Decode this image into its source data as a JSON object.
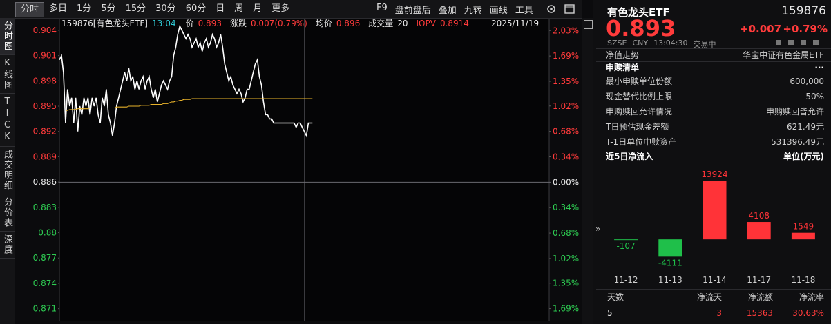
{
  "toolbar": {
    "tabs": [
      "分时",
      "多日",
      "1分",
      "5分",
      "15分",
      "30分",
      "60分",
      "日",
      "周",
      "月",
      "更多"
    ],
    "tools": [
      "F9",
      "盘前盘后",
      "叠加",
      "九转",
      "画线",
      "工具"
    ]
  },
  "sidebar": [
    "分时图",
    "K线图",
    "TICK",
    "成交明细",
    "分价表",
    "深度"
  ],
  "info_bar": {
    "name": "159876[有色龙头ETF]",
    "time": "13:04",
    "price": "0.893",
    "change_label": "涨跌",
    "change": "0.007(0.79%)",
    "avg_price": "0.896",
    "volume_label": "成交量",
    "volume": "20",
    "iopv_label": "IOPV",
    "iopv": "0.8914",
    "date": "2025/11/19"
  },
  "chart_data": [
    {
      "type": "line",
      "xlim": [
        0,
        240
      ],
      "ylim": [
        0.8695,
        0.9053
      ],
      "yticks": [
        0.904,
        0.901,
        0.898,
        0.895,
        0.892,
        0.889,
        0.886,
        0.883,
        0.88,
        0.877,
        0.874,
        0.871
      ],
      "y2lim": [
        -1.86,
        2.18
      ],
      "y2ticks": [
        {
          "value": 2.03,
          "label": "2.03%"
        },
        {
          "value": 1.69,
          "label": "1.69%"
        },
        {
          "value": 1.35,
          "label": "1.35%"
        },
        {
          "value": 1.02,
          "label": "1.02%"
        },
        {
          "value": 0.68,
          "label": "0.68%"
        },
        {
          "value": 0.34,
          "label": "0.34%"
        },
        {
          "value": 0,
          "label": "0.00%"
        },
        {
          "value": -0.34,
          "label": "0.34%"
        },
        {
          "value": -0.68,
          "label": "0.68%"
        },
        {
          "value": -1.02,
          "label": "1.02%"
        },
        {
          "value": -1.35,
          "label": "1.35%"
        },
        {
          "value": -1.69,
          "label": "1.69%"
        }
      ],
      "up_color": "#ff3b3b",
      "down_color": "#2ecc52",
      "series": [
        {
          "name": "价",
          "color": "#ffffff",
          "values": [
            0.9005,
            0.901,
            0.899,
            0.893,
            0.897,
            0.895,
            0.896,
            0.893,
            0.896,
            0.892,
            0.895,
            0.894,
            0.896,
            0.895,
            0.896,
            0.894,
            0.896,
            0.895,
            0.896,
            0.894,
            0.893,
            0.896,
            0.895,
            0.897,
            0.894,
            0.893,
            0.8915,
            0.893,
            0.895,
            0.896,
            0.897,
            0.898,
            0.899,
            0.898,
            0.8995,
            0.898,
            0.8985,
            0.897,
            0.898,
            0.897,
            0.898,
            0.8985,
            0.897,
            0.898,
            0.8985,
            0.897,
            0.896,
            0.897,
            0.8955,
            0.8965,
            0.8975,
            0.898,
            0.8975,
            0.897,
            0.898,
            0.8985,
            0.901,
            0.902,
            0.9035,
            0.9045,
            0.904,
            0.9035,
            0.903,
            0.9035,
            0.903,
            0.902,
            0.9025,
            0.903,
            0.902,
            0.9025,
            0.9015,
            0.9025,
            0.903,
            0.902,
            0.9025,
            0.9035,
            0.903,
            0.902,
            0.9025,
            0.9035,
            0.902,
            0.9,
            0.899,
            0.898,
            0.8985,
            0.8975,
            0.897,
            0.8965,
            0.897,
            0.8965,
            0.8955,
            0.896,
            0.897,
            0.897,
            0.898,
            0.899,
            0.9,
            0.9005,
            0.8985,
            0.8975,
            0.8955,
            0.894,
            0.894,
            0.8935,
            0.8935,
            0.893,
            0.893,
            0.893,
            0.893,
            0.893,
            0.893,
            0.893,
            0.893,
            0.893,
            0.893,
            0.893,
            0.8925,
            0.893,
            0.893,
            0.8925,
            0.892,
            0.8915,
            0.893,
            0.893,
            0.893
          ]
        },
        {
          "name": "均价",
          "color": "#e8b22a",
          "values": [
            null,
            null,
            null,
            0.8945,
            0.8945,
            0.8946,
            0.8946,
            0.8946,
            0.8946,
            0.8947,
            0.8947,
            0.8947,
            0.8947,
            0.8947,
            0.8947,
            0.8948,
            0.8948,
            0.8948,
            0.8948,
            0.8948,
            0.8948,
            0.8948,
            0.8948,
            0.8948,
            0.8948,
            0.8948,
            0.8948,
            0.8948,
            0.8949,
            0.8949,
            0.8949,
            0.8949,
            0.8949,
            0.8949,
            0.895,
            0.895,
            0.895,
            0.895,
            0.895,
            0.895,
            0.8951,
            0.8951,
            0.8951,
            0.8951,
            0.8951,
            0.8952,
            0.8952,
            0.8952,
            0.8952,
            0.8952,
            0.8952,
            0.8953,
            0.8953,
            0.8953,
            0.8954,
            0.8955,
            0.8955,
            0.8956,
            0.8956,
            0.8957,
            0.8957,
            0.8958,
            0.8958,
            0.8958,
            0.8958,
            0.8959,
            0.8959,
            0.8959,
            0.8959,
            0.8959,
            0.8959,
            0.8959,
            0.8959,
            0.8959,
            0.8959,
            0.8959,
            0.8959,
            0.8959,
            0.8959,
            0.8959,
            0.8959,
            0.8959,
            0.8959,
            0.8959,
            0.8959,
            0.8959,
            0.8959,
            0.8959,
            0.8959,
            0.8959,
            0.8959,
            0.8959,
            0.8959,
            0.8959,
            0.8959,
            0.8959,
            0.8959,
            0.8959,
            0.8959,
            0.8959,
            0.8959,
            0.8959,
            0.8959,
            0.8959,
            0.8959,
            0.8959,
            0.8959,
            0.8959,
            0.8959,
            0.8959,
            0.8959,
            0.8959,
            0.8959,
            0.8959,
            0.8959,
            0.8959,
            0.8959,
            0.8959,
            0.8959,
            0.8959,
            0.8959,
            0.8959,
            0.8959,
            0.8959,
            0.8959
          ]
        }
      ]
    },
    {
      "type": "bar",
      "title": "近5日净流入",
      "unit": "单位(万元)",
      "categories": [
        "11-12",
        "11-13",
        "11-14",
        "11-17",
        "11-18"
      ],
      "values": [
        -107,
        -4111,
        13924,
        4108,
        1549
      ],
      "ylim": [
        -7000,
        16700
      ],
      "up_color": "#ff3338",
      "down_color": "#1fbf4a"
    }
  ],
  "quote_panel": {
    "name": "有色龙头ETF",
    "code": "159876",
    "price": "0.893",
    "change": "+0.007",
    "change_pct": "+0.79%",
    "exchange": "SZSE",
    "currency": "CNY",
    "time": "13:04:30",
    "status": "交易中"
  },
  "nav": {
    "label": "净值走势",
    "value": "华宝中证有色金属ETF"
  },
  "creation_list": {
    "title": "申赎清单",
    "more": "···",
    "rows": [
      [
        "最小申赎单位份额",
        "600,000"
      ],
      [
        "现金替代比例上限",
        "50%"
      ],
      [
        "申购赎回允许情况",
        "申购赎回皆允许"
      ],
      [
        "T日预估现金差额",
        "621.49元"
      ],
      [
        "T-1日单位申赎资产",
        "531396.49元"
      ]
    ]
  },
  "flow_summary": {
    "headers": [
      "天数",
      "净流天",
      "净流额",
      "净流率"
    ],
    "values": [
      "5",
      "3",
      "15363",
      "30.63%"
    ]
  }
}
